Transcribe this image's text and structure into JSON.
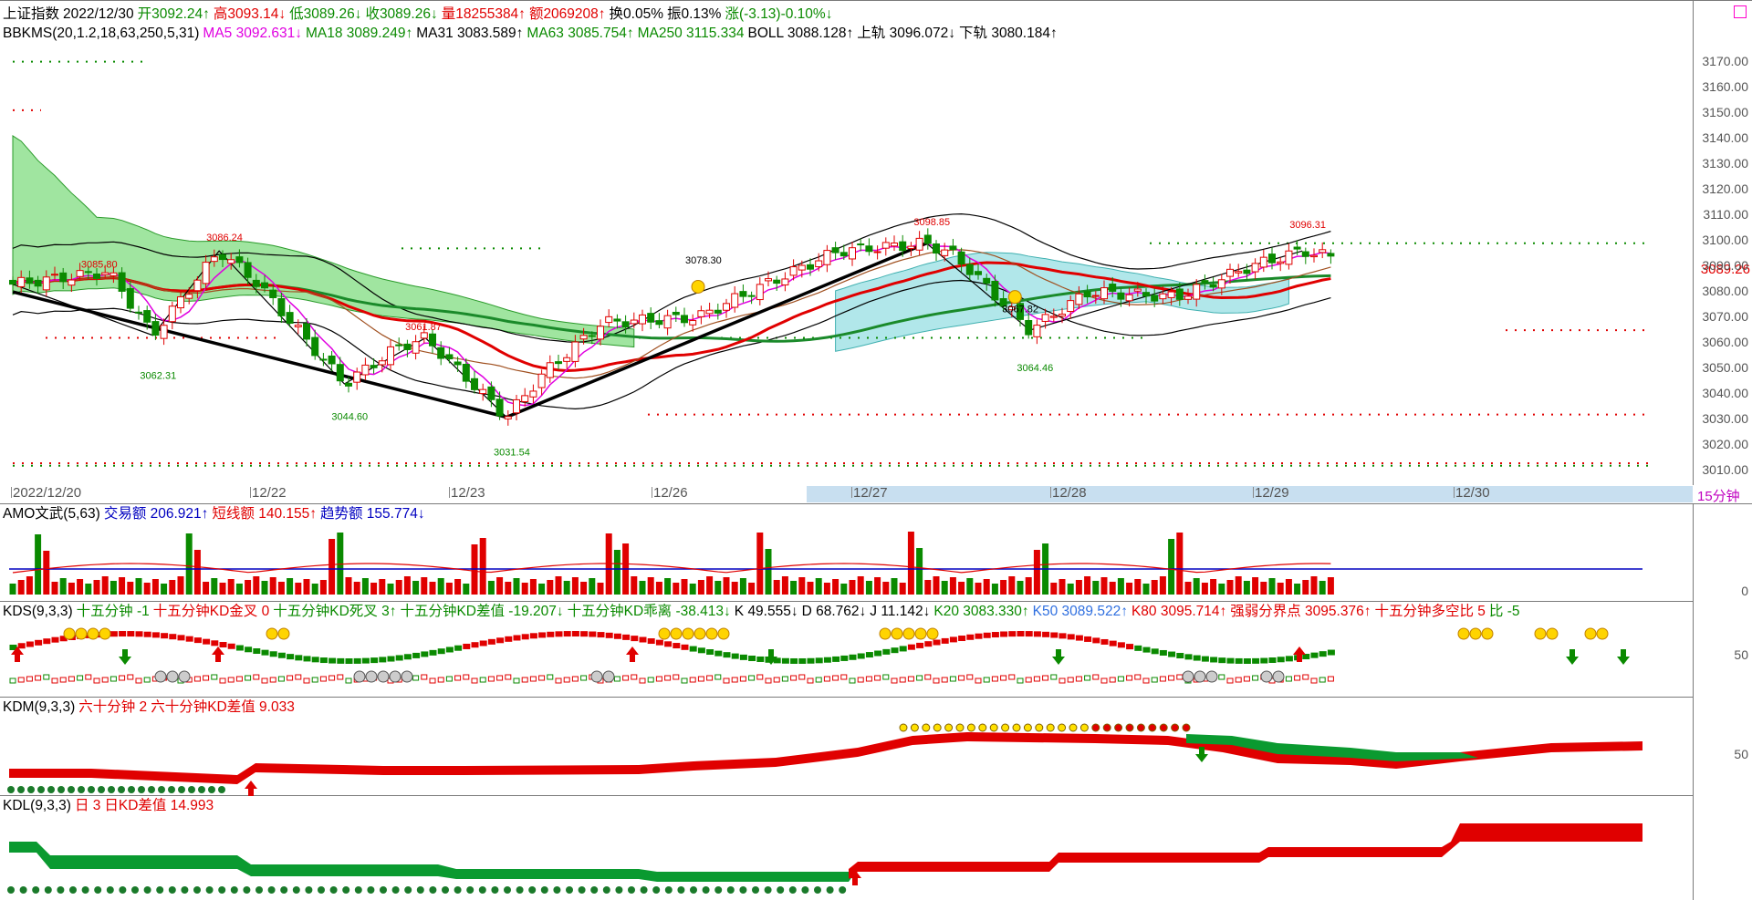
{
  "title_line": [
    {
      "t": "上证指数",
      "c": "#000"
    },
    {
      "t": "2022/12/30",
      "c": "#000"
    },
    {
      "t": "开3092.24↑",
      "c": "#0a8a00"
    },
    {
      "t": "高3093.14↓",
      "c": "#e00000"
    },
    {
      "t": "低3089.26↓",
      "c": "#0a8a00"
    },
    {
      "t": "收3089.26↓",
      "c": "#0a8a00"
    },
    {
      "t": "量18255384↑",
      "c": "#e00000"
    },
    {
      "t": "额2069208↑",
      "c": "#e00000"
    },
    {
      "t": "换0.05%",
      "c": "#000"
    },
    {
      "t": "振0.13%",
      "c": "#000"
    },
    {
      "t": "涨(-3.13)-0.10%↓",
      "c": "#0a8a00"
    }
  ],
  "ma_line": [
    {
      "t": "BBKMS(20,1.2,18,63,250,5,31)",
      "c": "#000"
    },
    {
      "t": "MA5 3092.631↓",
      "c": "#e000e0"
    },
    {
      "t": "MA18 3089.249↑",
      "c": "#0a8a00"
    },
    {
      "t": "MA31 3083.589↑",
      "c": "#000"
    },
    {
      "t": "MA63 3085.754↑",
      "c": "#0a8a00"
    },
    {
      "t": "MA250 3115.334",
      "c": "#0a8a00"
    },
    {
      "t": "BOLL 3088.128↑",
      "c": "#000"
    },
    {
      "t": "上轨 3096.072↓",
      "c": "#000"
    },
    {
      "t": "下轨 3080.184↑",
      "c": "#000"
    }
  ],
  "amo_line": [
    {
      "t": "AMO文武(5,63)",
      "c": "#000"
    },
    {
      "t": "交易额 206.921↑",
      "c": "#0000c0"
    },
    {
      "t": "短线额 140.155↑",
      "c": "#e00000"
    },
    {
      "t": "趋势额 155.774↓",
      "c": "#0000c0"
    }
  ],
  "kds_line": [
    {
      "t": "KDS(9,3,3)",
      "c": "#000"
    },
    {
      "t": "十五分钟 -1",
      "c": "#0a8a00"
    },
    {
      "t": "十五分钟KD金叉 0",
      "c": "#e00000"
    },
    {
      "t": "十五分钟KD死叉 3↑",
      "c": "#0a8a00"
    },
    {
      "t": "十五分钟KD差值 -19.207↓",
      "c": "#0a8a00"
    },
    {
      "t": "十五分钟KD乖离 -38.413↓",
      "c": "#0a8a00"
    },
    {
      "t": "K 49.555↓",
      "c": "#000"
    },
    {
      "t": "D 68.762↓",
      "c": "#000"
    },
    {
      "t": "J 11.142↓",
      "c": "#000"
    },
    {
      "t": "K20 3083.330↑",
      "c": "#0a8a00"
    },
    {
      "t": "K50 3089.522↑",
      "c": "#3070e0"
    },
    {
      "t": "K80 3095.714↑",
      "c": "#e00000"
    },
    {
      "t": "强弱分界点 3095.376↑",
      "c": "#e00000"
    },
    {
      "t": "十五分钟多空比 5",
      "c": "#e00000"
    },
    {
      "t": "比 -5",
      "c": "#0a8a00"
    }
  ],
  "kdm_line": [
    {
      "t": "KDM(9,3,3)",
      "c": "#000"
    },
    {
      "t": "六十分钟 2",
      "c": "#e00000"
    },
    {
      "t": "六十分钟KD差值 9.033",
      "c": "#e00000"
    }
  ],
  "kdl_line": [
    {
      "t": "KDL(9,3,3)",
      "c": "#000"
    },
    {
      "t": "日 3",
      "c": "#e00000"
    },
    {
      "t": "日KD差值 14.993",
      "c": "#e00000"
    }
  ],
  "price_label": "3089.26",
  "period_label": "15分钟",
  "sub_tick_50": "50",
  "amo_tick_0": "0",
  "chart_data": {
    "type": "candlestick",
    "y_ticks": [
      "3170.00",
      "3160.00",
      "3150.00",
      "3140.00",
      "3130.00",
      "3120.00",
      "3110.00",
      "3100.00",
      "3090.00",
      "3080.00",
      "3070.00",
      "3060.00",
      "3050.00",
      "3040.00",
      "3030.00",
      "3020.00",
      "3010.00"
    ],
    "ylim": [
      3008,
      3177
    ],
    "dates": [
      "2022/12/20",
      "12/22",
      "12/23",
      "12/26",
      "12/27",
      "12/28",
      "12/29",
      "12/30"
    ],
    "annotations": [
      {
        "t": "3085.80",
        "c": "#e00000",
        "i": 11,
        "p": 3089.5
      },
      {
        "t": "3086.24",
        "c": "#e00000",
        "i": 28,
        "p": 3100
      },
      {
        "t": "3062.31",
        "c": "#0a8a00",
        "i": 19,
        "p": 3046
      },
      {
        "t": "3061.87",
        "c": "#e00000",
        "i": 55,
        "p": 3065
      },
      {
        "t": "3044.60",
        "c": "#0a8a00",
        "i": 45,
        "p": 3030
      },
      {
        "t": "3031.54",
        "c": "#0a8a00",
        "i": 67,
        "p": 3016
      },
      {
        "t": "3078.30",
        "c": "#000",
        "i": 93,
        "p": 3091
      },
      {
        "t": "3098.85",
        "c": "#e00000",
        "i": 124,
        "p": 3106
      },
      {
        "t": "3067.82",
        "c": "#000",
        "i": 136,
        "p": 3072
      },
      {
        "t": "3064.46",
        "c": "#0a8a00",
        "i": 138,
        "p": 3049
      },
      {
        "t": "3096.31",
        "c": "#e00000",
        "i": 175,
        "p": 3105
      }
    ]
  }
}
